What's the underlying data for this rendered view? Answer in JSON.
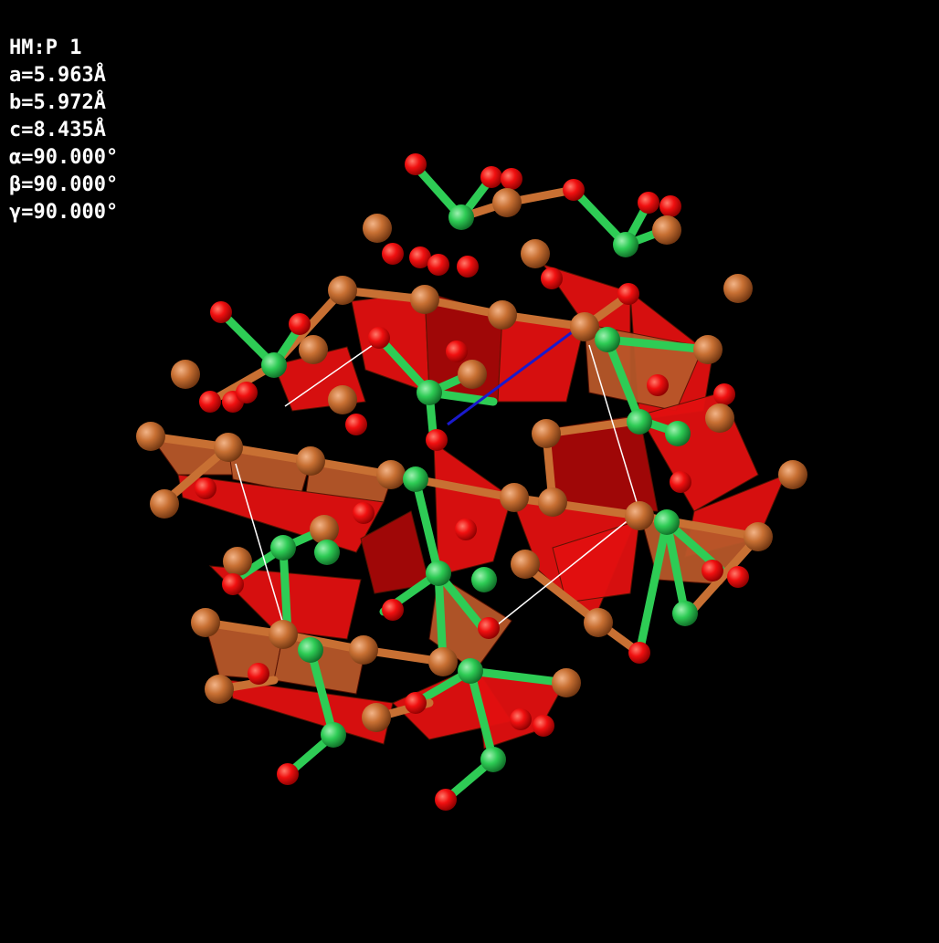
{
  "cell_info": {
    "space_group": "HM:P 1",
    "a": "a=5.963Å",
    "b": "b=5.972Å",
    "c": "c=8.435Å",
    "alpha": "α=90.000°",
    "beta": "β=90.000°",
    "gamma": "γ=90.000°"
  },
  "colors": {
    "background": "#000000",
    "oxygen": "#f01010",
    "copper": "#c87033",
    "green_atom": "#2ecc55",
    "polyhedron_red": "#e21010",
    "polyhedron_orange": "#b8582a",
    "cell_edge": "#ffffff",
    "axis_b": "#1a1acc"
  }
}
